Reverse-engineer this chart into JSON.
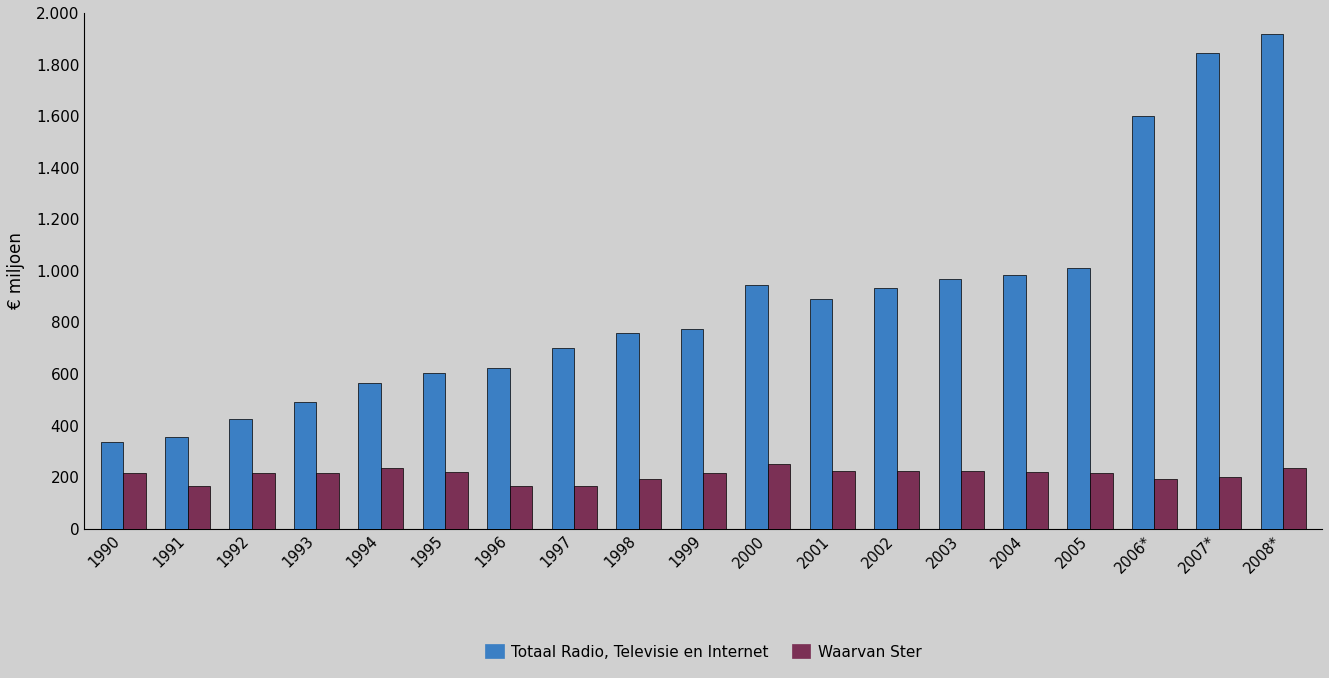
{
  "years": [
    "1990",
    "1991",
    "1992",
    "1993",
    "1994",
    "1995",
    "1996",
    "1997",
    "1998",
    "1999",
    "2000",
    "2001",
    "2002",
    "2003",
    "2004",
    "2005",
    "2006*",
    "2007*",
    "2008*"
  ],
  "totaal": [
    335,
    355,
    425,
    490,
    565,
    605,
    625,
    700,
    760,
    775,
    945,
    890,
    935,
    970,
    985,
    1010,
    1600,
    1845,
    1920
  ],
  "ster": [
    215,
    165,
    215,
    215,
    235,
    220,
    165,
    165,
    195,
    215,
    250,
    225,
    225,
    225,
    220,
    215,
    195,
    200,
    235
  ],
  "totaal_color": "#3B7FC4",
  "ster_color": "#7B3055",
  "plot_bg_color": "#D0D0D0",
  "fig_bg_color": "#D0D0D0",
  "ylabel": "€ miljoen",
  "ylim": [
    0,
    2000
  ],
  "yticks": [
    0,
    200,
    400,
    600,
    800,
    1000,
    1200,
    1400,
    1600,
    1800,
    2000
  ],
  "ytick_labels": [
    "0",
    "200",
    "400",
    "600",
    "800",
    "1.000",
    "1.200",
    "1.400",
    "1.600",
    "1.800",
    "2.000"
  ],
  "legend_totaal": "Totaal Radio, Televisie en Internet",
  "legend_ster": "Waarvan Ster",
  "bar_width": 0.35,
  "figsize": [
    13.29,
    6.78
  ],
  "dpi": 100
}
